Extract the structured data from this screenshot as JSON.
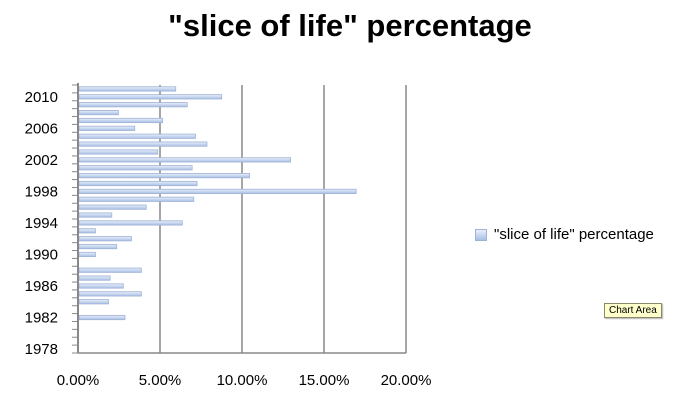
{
  "chart_data": {
    "type": "bar",
    "orientation": "horizontal",
    "title": "\"slice of life\" percentage",
    "series": [
      {
        "name": "\"slice of life\" percentage",
        "categories": [
          1978,
          1979,
          1980,
          1981,
          1982,
          1983,
          1984,
          1985,
          1986,
          1987,
          1988,
          1989,
          1990,
          1991,
          1992,
          1993,
          1994,
          1995,
          1996,
          1997,
          1998,
          1999,
          2000,
          2001,
          2002,
          2003,
          2004,
          2005,
          2006,
          2007,
          2008,
          2009,
          2010,
          2011
        ],
        "values": [
          0.0,
          0.0,
          0.0,
          0.0,
          2.8,
          0.0,
          1.8,
          3.8,
          2.7,
          1.9,
          3.8,
          0.0,
          1.0,
          2.3,
          3.2,
          1.0,
          6.3,
          2.0,
          4.1,
          7.0,
          16.9,
          7.2,
          10.4,
          6.9,
          12.9,
          4.8,
          7.8,
          7.1,
          3.4,
          5.1,
          2.4,
          6.6,
          8.7,
          5.9
        ]
      }
    ],
    "ytick_labels": [
      "1978",
      "1982",
      "1986",
      "1990",
      "1994",
      "1998",
      "2002",
      "2006",
      "2010"
    ],
    "xtick_labels": [
      "0.00%",
      "5.00%",
      "10.00%",
      "15.00%",
      "20.00%"
    ],
    "xlim": [
      0,
      20
    ],
    "grid": "vertical",
    "legend": {
      "position": "right",
      "label": "\"slice of life\" percentage"
    },
    "colors": {
      "bar_fill_top": "#e8effa",
      "bar_fill_bottom": "#a9bfe6",
      "bar_stroke": "#9fb3d6",
      "grid": "#888888"
    }
  },
  "tooltip": {
    "text": "Chart Area"
  }
}
